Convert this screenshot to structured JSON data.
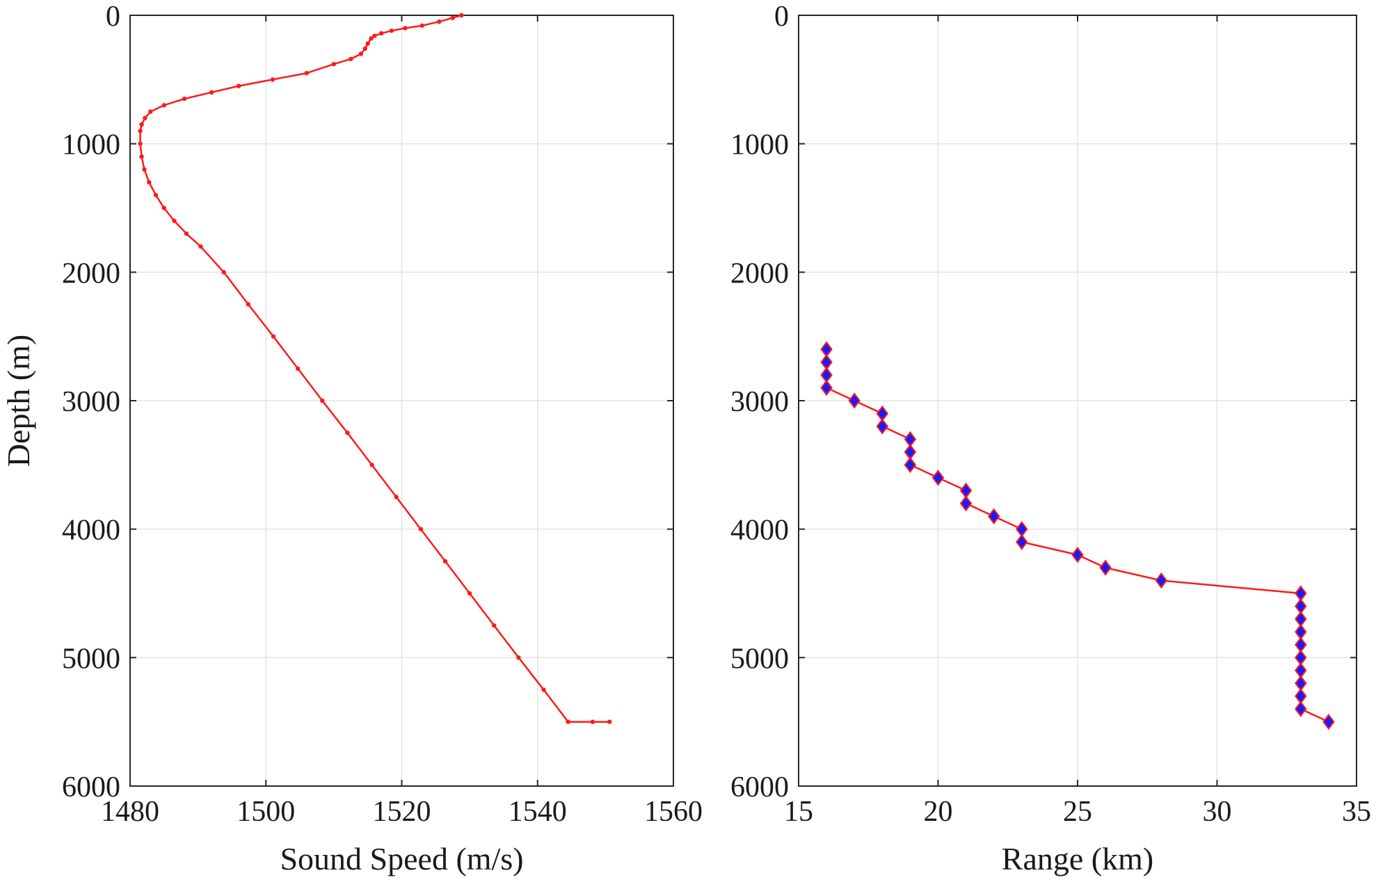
{
  "chart_data": [
    {
      "type": "line",
      "title": "",
      "xlabel": "Sound Speed (m/s)",
      "ylabel": "Depth (m)",
      "xlim": [
        1480,
        1560
      ],
      "ylim": [
        0,
        6000
      ],
      "y_reversed": true,
      "grid": true,
      "xticks": [
        "1480",
        "1500",
        "1520",
        "1540",
        "1560"
      ],
      "yticks": [
        "0",
        "1000",
        "2000",
        "3000",
        "4000",
        "5000",
        "6000"
      ],
      "series": [
        {
          "color": "#ff1a1a",
          "marker": "dot",
          "x": [
            1528.8,
            1527.5,
            1525.5,
            1523,
            1520.5,
            1518.5,
            1517,
            1516,
            1515.5,
            1515,
            1514.6,
            1514,
            1512.5,
            1510,
            1506,
            1501,
            1496,
            1492,
            1488,
            1485,
            1483,
            1482.2,
            1481.7,
            1481.5,
            1481.5,
            1481.7,
            1482.1,
            1482.8,
            1483.8,
            1485,
            1486.5,
            1488.3,
            1490.4,
            1493.8,
            1497.4,
            1501.1,
            1504.7,
            1508.3,
            1512,
            1515.6,
            1519.2,
            1522.8,
            1526.4,
            1530,
            1533.6,
            1537.2,
            1540.9,
            1544.5,
            1548.1,
            1550.6
          ],
          "y": [
            0,
            20,
            50,
            80,
            100,
            120,
            140,
            160,
            180,
            220,
            260,
            300,
            340,
            380,
            450,
            500,
            550,
            600,
            650,
            700,
            750,
            800,
            850,
            900,
            1000,
            1100,
            1200,
            1300,
            1400,
            1500,
            1600,
            1700,
            1800,
            2000,
            2250,
            2500,
            2750,
            3000,
            3250,
            3500,
            3750,
            4000,
            4250,
            4500,
            4750,
            5000,
            5250,
            5500,
            5500,
            5500
          ]
        }
      ]
    },
    {
      "type": "line",
      "title": "",
      "xlabel": "Range (km)",
      "ylabel": "",
      "xlim": [
        15,
        35
      ],
      "ylim": [
        0,
        6000
      ],
      "y_reversed": true,
      "grid": true,
      "xticks": [
        "15",
        "20",
        "25",
        "30",
        "35"
      ],
      "yticks": [
        "0",
        "1000",
        "2000",
        "3000",
        "4000",
        "5000",
        "6000"
      ],
      "series": [
        {
          "color": "#ff1a1a",
          "marker": "diamond",
          "marker_fill": "#1a1aff",
          "x": [
            16,
            16,
            16,
            16,
            17,
            18,
            18,
            19,
            19,
            19,
            20,
            21,
            21,
            22,
            23,
            23,
            25,
            26,
            28,
            33,
            33,
            33,
            33,
            33,
            33,
            33,
            33,
            33,
            33,
            34
          ],
          "y": [
            2600,
            2700,
            2800,
            2900,
            3000,
            3100,
            3200,
            3300,
            3400,
            3500,
            3600,
            3700,
            3800,
            3900,
            4000,
            4100,
            4200,
            4300,
            4400,
            4500,
            4600,
            4700,
            4800,
            4900,
            5000,
            5100,
            5200,
            5300,
            5400,
            5500
          ]
        }
      ]
    }
  ]
}
